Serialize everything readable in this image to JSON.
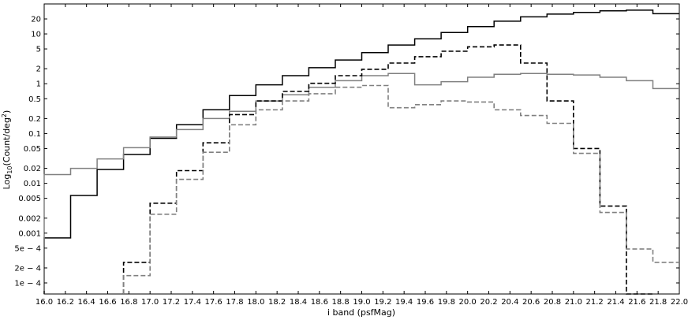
{
  "chart_data": {
    "type": "line",
    "step": true,
    "xlabel": "i band (psfMag)",
    "ylabel_main": "Log",
    "ylabel_sub": "10",
    "ylabel_rest": "(Count/deg",
    "ylabel_sup": "2",
    "ylabel_end": ")",
    "yscale": "log",
    "xlim": [
      16.0,
      22.0
    ],
    "ylim": [
      6e-05,
      40
    ],
    "x_ticks": [
      16.0,
      16.2,
      16.4,
      16.6,
      16.8,
      17.0,
      17.2,
      17.4,
      17.6,
      17.8,
      18.0,
      18.2,
      18.4,
      18.6,
      18.8,
      19.0,
      19.2,
      19.4,
      19.6,
      19.8,
      20.0,
      20.2,
      20.4,
      20.6,
      20.8,
      21.0,
      21.2,
      21.4,
      21.6,
      21.8,
      22.0
    ],
    "x_tick_labels": [
      "16.0",
      "16.2",
      "16.4",
      "16.6",
      "16.8",
      "17.0",
      "17.2",
      "17.4",
      "17.6",
      "17.8",
      "18.0",
      "18.2",
      "18.4",
      "18.6",
      "18.8",
      "19.0",
      "19.2",
      "19.4",
      "19.6",
      "19.8",
      "20.0",
      "20.2",
      "20.4",
      "20.6",
      "20.8",
      "21.0",
      "21.2",
      "21.4",
      "21.6",
      "21.8",
      "22.0"
    ],
    "y_ticks": [
      0.0001,
      0.0002,
      0.0005,
      0.001,
      0.002,
      0.005,
      0.01,
      0.02,
      0.05,
      0.1,
      0.2,
      0.5,
      1,
      2,
      5,
      10,
      20
    ],
    "y_tick_labels": [
      "1e − 4",
      "2e − 4",
      "5e − 4",
      "0.001",
      "0.002",
      "0.005",
      "0.01",
      "0.02",
      "0.05",
      "0.1",
      "0.2",
      "0.5",
      "1",
      "2",
      "5",
      "10",
      "20"
    ],
    "bin_edges": [
      16.0,
      16.25,
      16.5,
      16.75,
      17.0,
      17.25,
      17.5,
      17.75,
      18.0,
      18.25,
      18.5,
      18.75,
      19.0,
      19.25,
      19.5,
      19.75,
      20.0,
      20.25,
      20.5,
      20.75,
      21.0,
      21.25,
      21.5,
      21.75,
      22.0
    ],
    "series": [
      {
        "style": "black-solid",
        "color": "#000000",
        "dashed": false,
        "values": [
          0.0008,
          0.0057,
          0.019,
          0.038,
          0.08,
          0.15,
          0.3,
          0.58,
          0.95,
          1.45,
          2.1,
          3.0,
          4.2,
          6.0,
          8.0,
          10.7,
          14.0,
          18.0,
          22.0,
          25.0,
          27.0,
          29.0,
          30.0,
          25.5
        ]
      },
      {
        "style": "gray-solid",
        "color": "#808080",
        "dashed": false,
        "values": [
          0.015,
          0.02,
          0.031,
          0.052,
          0.085,
          0.12,
          0.2,
          0.28,
          0.45,
          0.6,
          0.85,
          1.15,
          1.45,
          1.6,
          0.95,
          1.1,
          1.35,
          1.55,
          1.6,
          1.55,
          1.5,
          1.35,
          1.15,
          0.8
        ]
      },
      {
        "style": "black-dashed",
        "color": "#000000",
        "dashed": true,
        "values": [
          null,
          null,
          null,
          0.00026,
          0.004,
          0.018,
          0.065,
          0.24,
          0.45,
          0.7,
          1.02,
          1.45,
          1.95,
          2.6,
          3.5,
          4.5,
          5.5,
          6.0,
          2.6,
          0.45,
          0.05,
          0.0035,
          2e-05,
          null
        ]
      },
      {
        "style": "gray-dashed",
        "color": "#808080",
        "dashed": true,
        "values": [
          null,
          null,
          null,
          0.00014,
          0.0024,
          0.012,
          0.042,
          0.15,
          0.3,
          0.45,
          0.63,
          0.85,
          0.92,
          0.33,
          0.38,
          0.45,
          0.43,
          0.3,
          0.23,
          0.16,
          0.04,
          0.0026,
          0.00048,
          0.00026
        ]
      }
    ]
  }
}
